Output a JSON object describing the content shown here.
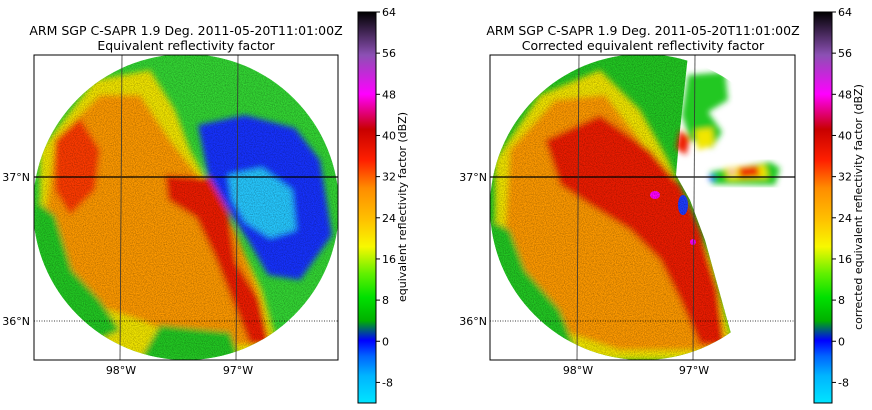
{
  "chart_data": [
    {
      "type": "heatmap",
      "title": "ARM SGP C-SAPR 1.9 Deg. 2011-05-20T11:01:00Z",
      "subtitle": "Equivalent reflectivity factor",
      "x_ticks": [
        "98°W",
        "97°W"
      ],
      "y_ticks": [
        "37°N",
        "36°N"
      ],
      "colorbar": {
        "label": "equivalent reflectivity factor (dBZ)",
        "ticks": [
          "-8",
          "0",
          "8",
          "16",
          "24",
          "32",
          "40",
          "48",
          "56",
          "64"
        ],
        "range": [
          -12,
          64
        ]
      }
    },
    {
      "type": "heatmap",
      "title": "ARM SGP C-SAPR 1.9 Deg. 2011-05-20T11:01:00Z",
      "subtitle": "Corrected equivalent reflectivity factor",
      "x_ticks": [
        "98°W",
        "97°W"
      ],
      "y_ticks": [
        "37°N",
        "36°N"
      ],
      "colorbar": {
        "label": "corrected equivalent reflectivity factor (dBZ)",
        "ticks": [
          "-8",
          "0",
          "8",
          "16",
          "24",
          "32",
          "40",
          "48",
          "56",
          "64"
        ],
        "range": [
          -12,
          64
        ]
      }
    }
  ],
  "colormap": [
    "#00e5ff",
    "#0096ff",
    "#0000ff",
    "#00c800",
    "#00ff00",
    "#7cfc00",
    "#ffff00",
    "#ffc800",
    "#ff9600",
    "#ff0000",
    "#c80000",
    "#ff00ff",
    "#9650c8",
    "#000000"
  ]
}
